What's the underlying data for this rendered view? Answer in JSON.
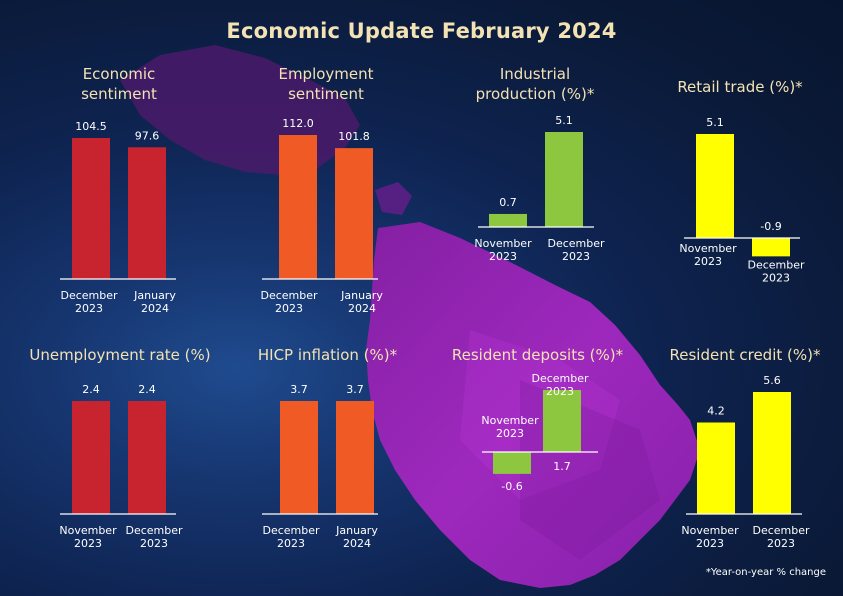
{
  "title": "Economic Update February 2024",
  "footnote": "*Year-on-year % change",
  "colors": {
    "title": "#f3e2b3",
    "red": "#c8242f",
    "orange": "#f05a24",
    "green": "#8dc63f",
    "yellow": "#ffff00",
    "axis": "#ffffff"
  },
  "panels": [
    {
      "title_lines": [
        "Economic",
        "sentiment"
      ],
      "chart_data": {
        "type": "bar",
        "categories": [
          [
            "December",
            "2023"
          ],
          [
            "January",
            "2024"
          ]
        ],
        "values": [
          104.5,
          97.6
        ],
        "labels": [
          "104.5",
          "97.6"
        ],
        "color": "red"
      }
    },
    {
      "title_lines": [
        "Employment",
        "sentiment"
      ],
      "chart_data": {
        "type": "bar",
        "categories": [
          [
            "December",
            "2023"
          ],
          [
            "January",
            "2024"
          ]
        ],
        "values": [
          112.0,
          101.8
        ],
        "labels": [
          "112.0",
          "101.8"
        ],
        "color": "orange"
      }
    },
    {
      "title_lines": [
        "Industrial",
        "production (%)*"
      ],
      "chart_data": {
        "type": "bar",
        "categories": [
          [
            "November",
            "2023"
          ],
          [
            "December",
            "2023"
          ]
        ],
        "values": [
          0.7,
          5.1
        ],
        "labels": [
          "0.7",
          "5.1"
        ],
        "color": "green"
      }
    },
    {
      "title_lines": [
        "Retail trade (%)*"
      ],
      "chart_data": {
        "type": "bar",
        "categories": [
          [
            "November",
            "2023"
          ],
          [
            "December",
            "2023"
          ]
        ],
        "values": [
          5.1,
          -0.9
        ],
        "labels": [
          "5.1",
          "-0.9"
        ],
        "color": "yellow"
      }
    },
    {
      "title_lines": [
        "Unemployment rate (%)"
      ],
      "chart_data": {
        "type": "bar",
        "categories": [
          [
            "November",
            "2023"
          ],
          [
            "December",
            "2023"
          ]
        ],
        "values": [
          2.4,
          2.4
        ],
        "labels": [
          "2.4",
          "2.4"
        ],
        "color": "red"
      }
    },
    {
      "title_lines": [
        "HICP inflation (%)*"
      ],
      "chart_data": {
        "type": "bar",
        "categories": [
          [
            "December",
            "2023"
          ],
          [
            "January",
            "2024"
          ]
        ],
        "values": [
          3.7,
          3.7
        ],
        "labels": [
          "3.7",
          "3.7"
        ],
        "color": "orange"
      }
    },
    {
      "title_lines": [
        "Resident deposits (%)*"
      ],
      "chart_data": {
        "type": "bar",
        "categories": [
          [
            "November",
            "2023"
          ],
          [
            "December",
            "2023"
          ]
        ],
        "values": [
          -0.6,
          1.7
        ],
        "labels": [
          "-0.6",
          "1.7"
        ],
        "color": "green"
      }
    },
    {
      "title_lines": [
        "Resident credit (%)*"
      ],
      "chart_data": {
        "type": "bar",
        "categories": [
          [
            "November",
            "2023"
          ],
          [
            "December",
            "2023"
          ]
        ],
        "values": [
          4.2,
          5.6
        ],
        "labels": [
          "4.2",
          "5.6"
        ],
        "color": "yellow"
      }
    }
  ]
}
